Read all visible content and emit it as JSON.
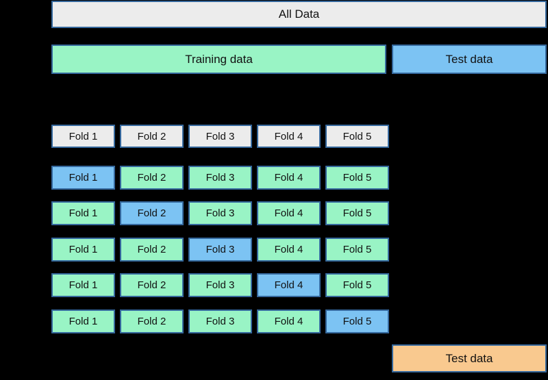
{
  "colors": {
    "background": "#000000",
    "box_border": "#35689d",
    "gray_fill": "#ececec",
    "train_fill": "#99f4c5",
    "test_fill": "#7cc3f3",
    "final_test_fill": "#f9c98f",
    "text": "#111111"
  },
  "top": {
    "all_data_label": "All Data"
  },
  "split_bar": {
    "training_label": "Training data",
    "test_label": "Test data"
  },
  "folds": {
    "headers": [
      "Fold 1",
      "Fold 2",
      "Fold 3",
      "Fold 4",
      "Fold 5"
    ],
    "rows": [
      {
        "cells": [
          {
            "label": "Fold 1",
            "role": "test"
          },
          {
            "label": "Fold 2",
            "role": "train"
          },
          {
            "label": "Fold 3",
            "role": "train"
          },
          {
            "label": "Fold 4",
            "role": "train"
          },
          {
            "label": "Fold 5",
            "role": "train"
          }
        ]
      },
      {
        "cells": [
          {
            "label": "Fold 1",
            "role": "train"
          },
          {
            "label": "Fold 2",
            "role": "test"
          },
          {
            "label": "Fold 3",
            "role": "train"
          },
          {
            "label": "Fold 4",
            "role": "train"
          },
          {
            "label": "Fold 5",
            "role": "train"
          }
        ]
      },
      {
        "cells": [
          {
            "label": "Fold 1",
            "role": "train"
          },
          {
            "label": "Fold 2",
            "role": "train"
          },
          {
            "label": "Fold 3",
            "role": "test"
          },
          {
            "label": "Fold 4",
            "role": "train"
          },
          {
            "label": "Fold 5",
            "role": "train"
          }
        ]
      },
      {
        "cells": [
          {
            "label": "Fold 1",
            "role": "train"
          },
          {
            "label": "Fold 2",
            "role": "train"
          },
          {
            "label": "Fold 3",
            "role": "train"
          },
          {
            "label": "Fold 4",
            "role": "test"
          },
          {
            "label": "Fold 5",
            "role": "train"
          }
        ]
      },
      {
        "cells": [
          {
            "label": "Fold 1",
            "role": "train"
          },
          {
            "label": "Fold 2",
            "role": "train"
          },
          {
            "label": "Fold 3",
            "role": "train"
          },
          {
            "label": "Fold 4",
            "role": "train"
          },
          {
            "label": "Fold 5",
            "role": "test"
          }
        ]
      }
    ]
  },
  "final": {
    "test_label": "Test data"
  }
}
